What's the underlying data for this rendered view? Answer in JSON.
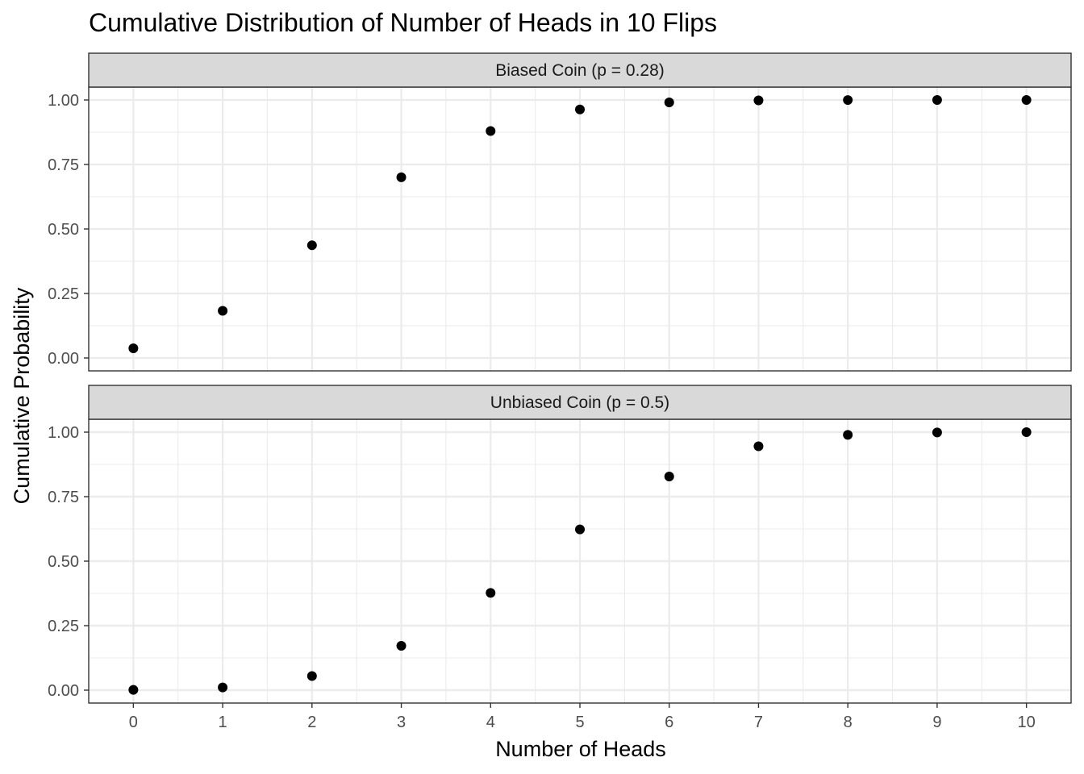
{
  "chart_data": {
    "type": "scatter",
    "title": "Cumulative Distribution of Number of Heads in 10 Flips",
    "xlabel": "Number of Heads",
    "ylabel": "Cumulative Probability",
    "xlim": [
      -0.5,
      10.5
    ],
    "ylim": [
      -0.05,
      1.05
    ],
    "x_ticks": [
      "0",
      "1",
      "2",
      "3",
      "4",
      "5",
      "6",
      "7",
      "8",
      "9",
      "10"
    ],
    "y_ticks": [
      "0.00",
      "0.25",
      "0.50",
      "0.75",
      "1.00"
    ],
    "grid": true,
    "point_color": "#000000",
    "panels": [
      {
        "label": "Biased Coin (p = 0.28)",
        "x": [
          0,
          1,
          2,
          3,
          4,
          5,
          6,
          7,
          8,
          9,
          10
        ],
        "y": [
          0.0374,
          0.1828,
          0.4369,
          0.7004,
          0.8797,
          0.9634,
          0.9905,
          0.9984,
          0.9998,
          1.0,
          1.0
        ]
      },
      {
        "label": "Unbiased Coin (p = 0.5)",
        "x": [
          0,
          1,
          2,
          3,
          4,
          5,
          6,
          7,
          8,
          9,
          10
        ],
        "y": [
          0.001,
          0.0107,
          0.0547,
          0.1719,
          0.377,
          0.623,
          0.8281,
          0.9453,
          0.9893,
          0.999,
          1.0
        ]
      }
    ]
  }
}
